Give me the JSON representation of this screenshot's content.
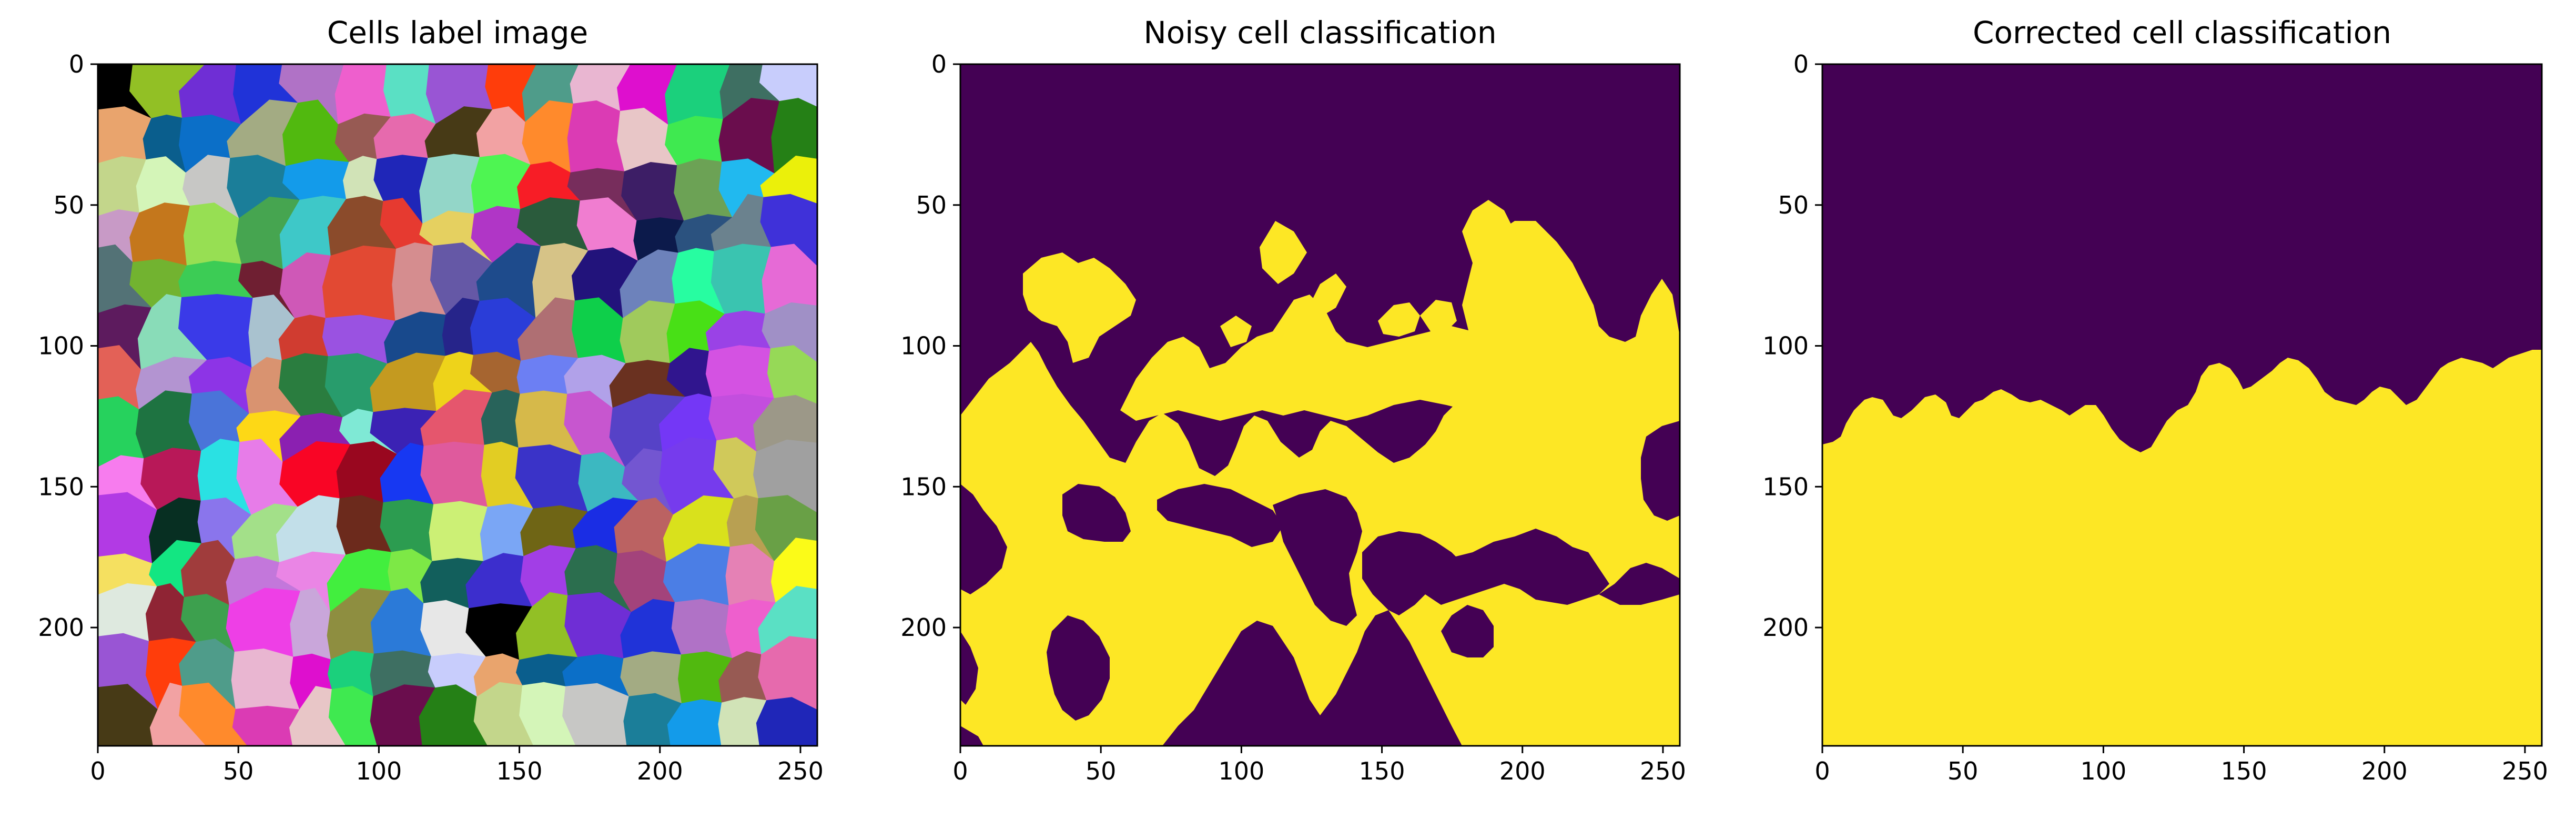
{
  "figure": {
    "panels": [
      {
        "title": "Cells label image",
        "kind": "label-image",
        "xlim": [
          0,
          256
        ],
        "ylim": [
          242,
          0
        ],
        "xticks": [
          0,
          50,
          100,
          150,
          200,
          250
        ],
        "yticks": [
          0,
          50,
          100,
          150,
          200
        ],
        "cell_colors": [
          "#000000",
          "#92c025",
          "#6f2ed5",
          "#2033d8",
          "#b072c6",
          "#ee5fcd",
          "#5ae0c4",
          "#9955d4",
          "#ff3d0b",
          "#4f9c8a",
          "#e9b6d1",
          "#de0fce",
          "#1bd07c",
          "#3e6f62",
          "#c8cdfc",
          "#e9a46d",
          "#0a5e8d",
          "#0b6fc8",
          "#a3ab83",
          "#51b90f",
          "#975a53",
          "#e66aad",
          "#473a16",
          "#f2a2a3",
          "#ff8a2c",
          "#db3bb4",
          "#e8c6c7",
          "#3fe950",
          "#6a0d4d",
          "#258016",
          "#c3d68b",
          "#d4f5b8",
          "#c7c7c5",
          "#1b7e99",
          "#139bea",
          "#d1e3b7",
          "#1f26b8",
          "#93d6c8",
          "#4ef552",
          "#f71d26",
          "#772d5c",
          "#3d1e66",
          "#6ca255",
          "#21b9ef",
          "#ebf00a",
          "#c89ac6",
          "#c4771c",
          "#97df53",
          "#46a550",
          "#3ec8c8",
          "#8b4b2b",
          "#e63a30",
          "#e5d060",
          "#b036c6",
          "#2a5b3c",
          "#f07dd0",
          "#0c1a4b",
          "#2b527f",
          "#6b828e",
          "#3f31d9",
          "#537276",
          "#72b330",
          "#3ccc55",
          "#6f1f32",
          "#cf58b7",
          "#e24933",
          "#d58d8f",
          "#6558a6",
          "#1e4b8c",
          "#d6c387",
          "#22137b",
          "#6d82bb",
          "#27fda1",
          "#3ac4b0",
          "#e66ad6",
          "#5d1b5e",
          "#89dcb8",
          "#3a3ae8",
          "#a9c2cf",
          "#d03c30",
          "#9a52e1",
          "#18498c",
          "#26248a",
          "#2a3dd8",
          "#af6f73",
          "#0ecf4a",
          "#a0ca5c",
          "#48e016",
          "#9a42e6",
          "#a090c6",
          "#e36157",
          "#b394d1",
          "#8d34e6",
          "#d99370",
          "#2a7d3f",
          "#289c6c",
          "#c49a20",
          "#eed31a",
          "#a66530",
          "#6c7ff3",
          "#b1a1e9",
          "#6a3120",
          "#30158e",
          "#d452e2",
          "#96d957",
          "#26d25d",
          "#1e7341",
          "#4a74d9",
          "#fdd816",
          "#8b20b1",
          "#7fe9d5",
          "#3b22b4",
          "#e5566d",
          "#28635a",
          "#d6b94a",
          "#c756cf",
          "#5642c7",
          "#7437f6",
          "#c34ede",
          "#9c9888",
          "#f77cee",
          "#b81858",
          "#2ae1e3",
          "#e77ce8",
          "#f90525",
          "#99071f",
          "#1738f2",
          "#df5a9d",
          "#e2cd23",
          "#3a33c8",
          "#3cb8c1",
          "#7356d1",
          "#763bed",
          "#d0c95a",
          "#a0a0a0",
          "#b23ae4",
          "#072f22",
          "#8a75ec",
          "#a3e089",
          "#c2dfe9",
          "#6c2a1c",
          "#2c9c50",
          "#ccf075",
          "#7aa6f5",
          "#6f6515",
          "#1a2de4",
          "#bb6262",
          "#d9e11c",
          "#b8a052",
          "#69a046",
          "#f5e060",
          "#13e682",
          "#a03c3c",
          "#c377db",
          "#ea85e5",
          "#42ee3e",
          "#7de846",
          "#125f5c",
          "#3c2ecd",
          "#a23ee6",
          "#2b6e4e",
          "#a3437b",
          "#4b7ee5",
          "#e581b5",
          "#fbfb18",
          "#dee9df",
          "#8f2434",
          "#3da04e",
          "#ee3fe6",
          "#c9a6da",
          "#8e8e40",
          "#2b7ad8",
          "#e7e7e7"
        ]
      },
      {
        "title": "Noisy cell classification",
        "kind": "binary-mask",
        "xlim": [
          0,
          256
        ],
        "ylim": [
          242,
          0
        ],
        "xticks": [
          0,
          50,
          100,
          150,
          200,
          250
        ],
        "yticks": [
          0,
          50,
          100,
          150,
          200
        ],
        "colors": {
          "zero": "#440154",
          "one": "#fde725"
        }
      },
      {
        "title": "Corrected cell classification",
        "kind": "binary-mask",
        "xlim": [
          0,
          256
        ],
        "ylim": [
          242,
          0
        ],
        "xticks": [
          0,
          50,
          100,
          150,
          200,
          250
        ],
        "yticks": [
          0,
          50,
          100,
          150,
          200
        ],
        "colors": {
          "zero": "#440154",
          "one": "#fde725"
        }
      }
    ]
  }
}
